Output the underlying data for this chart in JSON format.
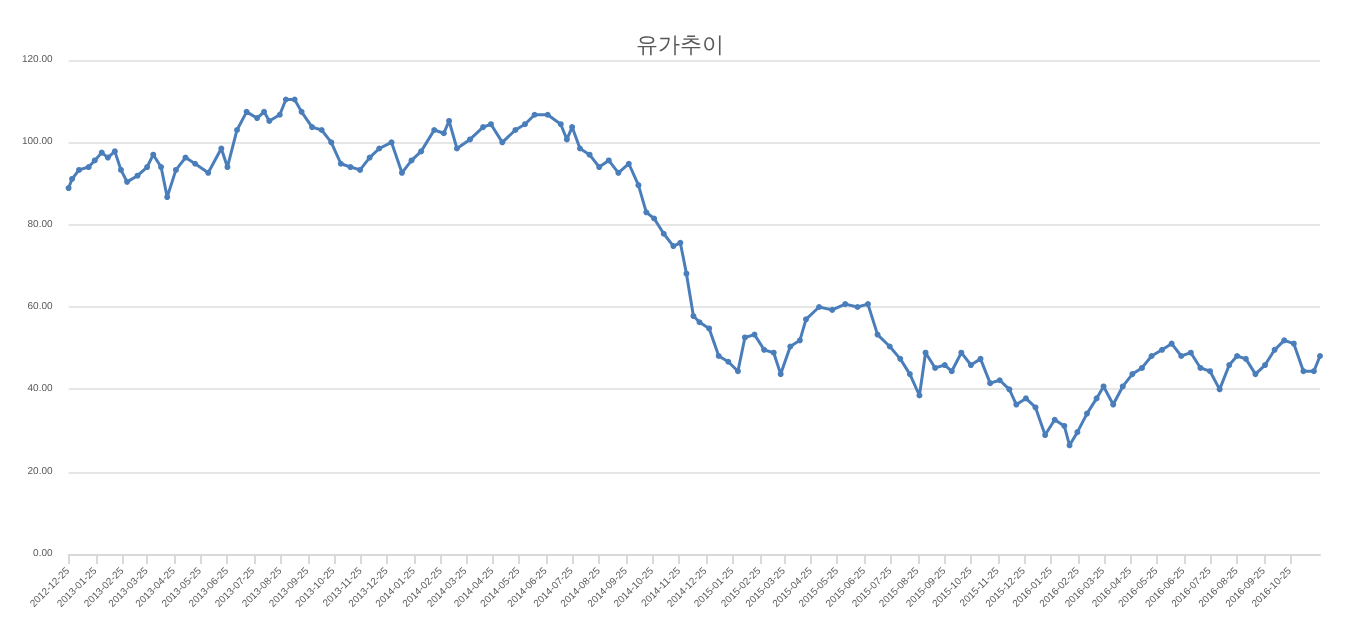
{
  "chart_data": {
    "type": "line",
    "title": "유가추이",
    "marker": "circle",
    "grid": "y",
    "xlim": [
      "2012-12-25",
      "2016-11-28"
    ],
    "xticks": [
      "2012-12-25",
      "2013-01-25",
      "2013-02-25",
      "2013-03-25",
      "2013-04-25",
      "2013-05-25",
      "2013-06-25",
      "2013-07-25",
      "2013-08-25",
      "2013-09-25",
      "2013-10-25",
      "2013-11-25",
      "2013-12-25",
      "2014-01-25",
      "2014-02-25",
      "2014-03-25",
      "2014-04-25",
      "2014-05-25",
      "2014-06-25",
      "2014-07-25",
      "2014-08-25",
      "2014-09-25",
      "2014-10-25",
      "2014-11-25",
      "2014-12-25",
      "2015-01-25",
      "2015-02-25",
      "2015-03-25",
      "2015-04-25",
      "2015-05-25",
      "2015-06-25",
      "2015-07-25",
      "2015-08-25",
      "2015-09-25",
      "2015-10-25",
      "2015-11-25",
      "2015-12-25",
      "2016-01-25",
      "2016-02-25",
      "2016-03-25",
      "2016-04-25",
      "2016-05-25",
      "2016-06-25",
      "2016-07-25",
      "2016-08-25",
      "2016-09-25",
      "2016-10-25"
    ],
    "ylim": [
      0,
      120
    ],
    "yticks": [
      {
        "value": 0,
        "label": "0.00"
      },
      {
        "value": 20,
        "label": "20.00"
      },
      {
        "value": 40,
        "label": "40.00"
      },
      {
        "value": 60,
        "label": "60.00"
      },
      {
        "value": 80,
        "label": "80.00"
      },
      {
        "value": 100,
        "label": "100.00"
      },
      {
        "value": 120,
        "label": "120.00"
      }
    ],
    "series": [
      {
        "color": "#4a7ebb",
        "x": [
          "2012-12-25",
          "2012-12-29",
          "2013-01-06",
          "2013-01-17",
          "2013-01-24",
          "2013-02-01",
          "2013-02-08",
          "2013-02-16",
          "2013-02-23",
          "2013-03-02",
          "2013-03-14",
          "2013-03-25",
          "2013-04-01",
          "2013-04-10",
          "2013-04-17",
          "2013-04-27",
          "2013-05-08",
          "2013-05-19",
          "2013-06-03",
          "2013-06-18",
          "2013-06-25",
          "2013-07-06",
          "2013-07-17",
          "2013-07-29",
          "2013-08-06",
          "2013-08-12",
          "2013-08-24",
          "2013-08-31",
          "2013-09-10",
          "2013-09-18",
          "2013-09-30",
          "2013-10-11",
          "2013-10-22",
          "2013-11-02",
          "2013-11-13",
          "2013-11-24",
          "2013-12-05",
          "2013-12-16",
          "2013-12-30",
          "2014-01-11",
          "2014-01-22",
          "2014-02-02",
          "2014-02-17",
          "2014-02-28",
          "2014-03-06",
          "2014-03-15",
          "2014-03-30",
          "2014-04-14",
          "2014-04-23",
          "2014-05-06",
          "2014-05-21",
          "2014-06-01",
          "2014-06-12",
          "2014-06-27",
          "2014-07-12",
          "2014-07-19",
          "2014-07-25",
          "2014-08-03",
          "2014-08-14",
          "2014-08-25",
          "2014-09-05",
          "2014-09-16",
          "2014-09-28",
          "2014-10-09",
          "2014-10-18",
          "2014-10-27",
          "2014-11-07",
          "2014-11-18",
          "2014-11-26",
          "2014-12-03",
          "2014-12-11",
          "2014-12-18",
          "2014-12-29",
          "2015-01-09",
          "2015-01-20",
          "2015-01-31",
          "2015-02-08",
          "2015-02-19",
          "2015-03-02",
          "2015-03-13",
          "2015-03-21",
          "2015-04-01",
          "2015-04-12",
          "2015-04-19",
          "2015-05-04",
          "2015-05-19",
          "2015-06-03",
          "2015-06-17",
          "2015-06-29",
          "2015-07-10",
          "2015-07-24",
          "2015-08-05",
          "2015-08-16",
          "2015-08-27",
          "2015-09-03",
          "2015-09-14",
          "2015-09-25",
          "2015-10-03",
          "2015-10-14",
          "2015-10-25",
          "2015-11-05",
          "2015-11-16",
          "2015-11-27",
          "2015-12-08",
          "2015-12-16",
          "2015-12-27",
          "2016-01-07",
          "2016-01-18",
          "2016-01-29",
          "2016-02-09",
          "2016-02-15",
          "2016-02-24",
          "2016-03-06",
          "2016-03-17",
          "2016-03-25",
          "2016-04-05",
          "2016-04-16",
          "2016-04-27",
          "2016-05-08",
          "2016-05-19",
          "2016-05-31",
          "2016-06-11",
          "2016-06-22",
          "2016-07-03",
          "2016-07-14",
          "2016-07-25",
          "2016-08-05",
          "2016-08-16",
          "2016-08-25",
          "2016-09-04",
          "2016-09-15",
          "2016-09-26",
          "2016-10-07",
          "2016-10-18",
          "2016-10-29",
          "2016-11-09",
          "2016-11-21",
          "2016-11-28"
        ],
        "values": [
          88.9,
          91.1,
          93.3,
          94,
          95.6,
          97.5,
          96.3,
          97.8,
          93.3,
          90.4,
          91.9,
          94,
          97,
          94,
          86.7,
          93.3,
          96.3,
          94.8,
          92.6,
          98.5,
          94,
          103,
          107.4,
          105.9,
          107.4,
          105.2,
          106.7,
          110.4,
          110.4,
          107.4,
          103.7,
          103,
          100,
          94.8,
          94,
          93.3,
          96.3,
          98.5,
          100,
          92.6,
          95.6,
          97.8,
          103,
          102.2,
          105.2,
          98.5,
          100.7,
          103.7,
          104.4,
          100,
          103,
          104.4,
          106.7,
          106.7,
          104.4,
          100.7,
          103.7,
          98.5,
          97,
          94,
          95.6,
          92.6,
          94.8,
          89.6,
          83,
          81.5,
          77.8,
          74.8,
          75.6,
          68.1,
          57.8,
          56.3,
          54.8,
          48.1,
          46.7,
          44.4,
          52.6,
          53.3,
          49.6,
          48.9,
          43.7,
          50.4,
          51.9,
          57,
          60,
          59.3,
          60.7,
          60,
          60.7,
          53.3,
          50.4,
          47.4,
          43.7,
          38.5,
          48.9,
          45.2,
          45.9,
          44.4,
          48.9,
          45.9,
          47.4,
          41.5,
          42.2,
          40,
          36.3,
          37.8,
          35.6,
          28.9,
          32.6,
          31.1,
          26.4,
          29.6,
          34.1,
          37.8,
          40.7,
          36.3,
          40.7,
          43.7,
          45.2,
          48.1,
          49.6,
          51.1,
          48.1,
          48.9,
          45.2,
          44.4,
          40,
          45.9,
          48.1,
          47.4,
          43.7,
          45.9,
          49.6,
          51.9,
          51.1,
          44.4,
          44.4,
          48.1
        ]
      }
    ]
  }
}
